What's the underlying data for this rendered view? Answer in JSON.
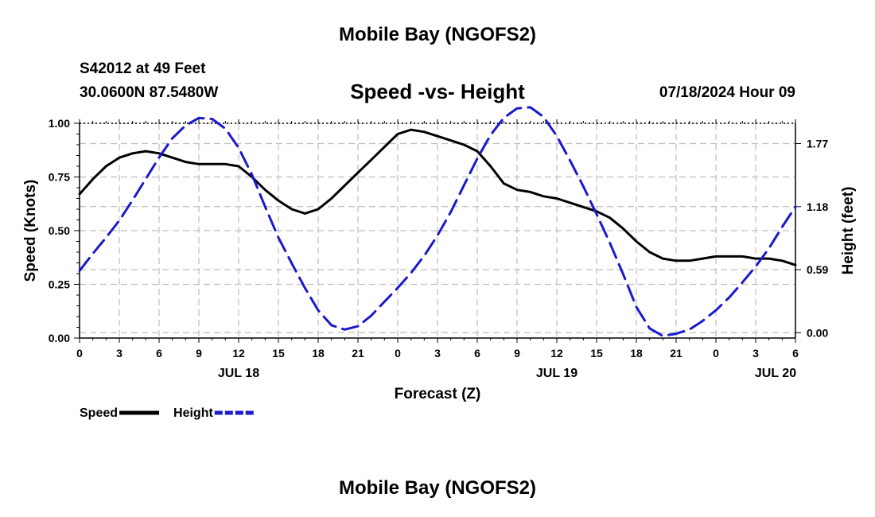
{
  "page": {
    "title_top": "Mobile Bay (NGOFS2)",
    "title_bottom": "Mobile Bay (NGOFS2)",
    "station": "S42012 at 49 Feet",
    "coords": "30.0600N  87.5480W",
    "timestamp": "07/18/2024 Hour 09"
  },
  "chart_data": {
    "type": "line",
    "title": "Speed -vs- Height",
    "xlabel": "Forecast (Z)",
    "ylabel": "Speed (Knots)",
    "y2label": "Height (feet)",
    "x_unit": "hours from JUL 18 00Z",
    "xlim": [
      0,
      54
    ],
    "ylim": [
      0,
      1.0
    ],
    "y2lim": [
      -0.05,
      1.96
    ],
    "x_ticks": [
      0,
      3,
      6,
      9,
      12,
      15,
      18,
      21,
      24,
      27,
      30,
      33,
      36,
      39,
      42,
      45,
      48,
      51,
      54
    ],
    "x_tick_labels": [
      "0",
      "3",
      "6",
      "9",
      "12",
      "15",
      "18",
      "21",
      "0",
      "3",
      "6",
      "9",
      "12",
      "15",
      "18",
      "21",
      "0",
      "3",
      "6"
    ],
    "date_labels": [
      {
        "x": 12,
        "label": "JUL 18"
      },
      {
        "x": 36,
        "label": "JUL 19"
      },
      {
        "x": 52.5,
        "label": "JUL 20"
      }
    ],
    "y_ticks": [
      0,
      0.25,
      0.5,
      0.75,
      1.0
    ],
    "y_tick_labels": [
      "0.00",
      "0.25",
      "0.50",
      "0.75",
      "1.00"
    ],
    "y2_ticks": [
      0.0,
      0.59,
      1.18,
      1.77
    ],
    "y2_tick_labels": [
      "0.00",
      "0.59",
      "1.18",
      "1.77"
    ],
    "legend_position": "bottom-left",
    "series": [
      {
        "name": "Speed",
        "axis": "left",
        "style": "solid",
        "color": "#000000",
        "x": [
          0,
          1,
          2,
          3,
          4,
          5,
          6,
          7,
          8,
          9,
          10,
          11,
          12,
          13,
          14,
          15,
          16,
          17,
          18,
          19,
          20,
          21,
          22,
          23,
          24,
          25,
          26,
          27,
          28,
          29,
          30,
          31,
          32,
          33,
          34,
          35,
          36,
          37,
          38,
          39,
          40,
          41,
          42,
          43,
          44,
          45,
          46,
          47,
          48,
          49,
          50,
          51,
          52,
          53,
          54
        ],
        "values": [
          0.67,
          0.74,
          0.8,
          0.84,
          0.86,
          0.87,
          0.86,
          0.84,
          0.82,
          0.81,
          0.81,
          0.81,
          0.8,
          0.75,
          0.69,
          0.64,
          0.6,
          0.58,
          0.6,
          0.65,
          0.71,
          0.77,
          0.83,
          0.89,
          0.95,
          0.97,
          0.96,
          0.94,
          0.92,
          0.9,
          0.87,
          0.8,
          0.72,
          0.69,
          0.68,
          0.66,
          0.65,
          0.63,
          0.61,
          0.59,
          0.56,
          0.51,
          0.45,
          0.4,
          0.37,
          0.36,
          0.36,
          0.37,
          0.38,
          0.38,
          0.38,
          0.37,
          0.37,
          0.36,
          0.34
        ]
      },
      {
        "name": "Height",
        "axis": "right",
        "style": "dashed",
        "color": "#1a1acc",
        "x": [
          0,
          1,
          2,
          3,
          4,
          5,
          6,
          7,
          8,
          9,
          10,
          11,
          12,
          13,
          14,
          15,
          16,
          17,
          18,
          19,
          20,
          21,
          22,
          23,
          24,
          25,
          26,
          27,
          28,
          29,
          30,
          31,
          32,
          33,
          34,
          35,
          36,
          37,
          38,
          39,
          40,
          41,
          42,
          43,
          44,
          45,
          46,
          47,
          48,
          49,
          50,
          51,
          52,
          53,
          54
        ],
        "values": [
          0.58,
          0.74,
          0.89,
          1.05,
          1.24,
          1.44,
          1.64,
          1.82,
          1.94,
          2.01,
          2.0,
          1.91,
          1.73,
          1.48,
          1.18,
          0.89,
          0.65,
          0.42,
          0.21,
          0.07,
          0.03,
          0.06,
          0.16,
          0.29,
          0.42,
          0.56,
          0.72,
          0.91,
          1.13,
          1.38,
          1.63,
          1.85,
          2.01,
          2.1,
          2.11,
          2.02,
          1.84,
          1.61,
          1.37,
          1.11,
          0.84,
          0.55,
          0.24,
          0.04,
          -0.03,
          -0.01,
          0.03,
          0.11,
          0.21,
          0.33,
          0.47,
          0.62,
          0.79,
          0.99,
          1.18
        ]
      }
    ]
  }
}
